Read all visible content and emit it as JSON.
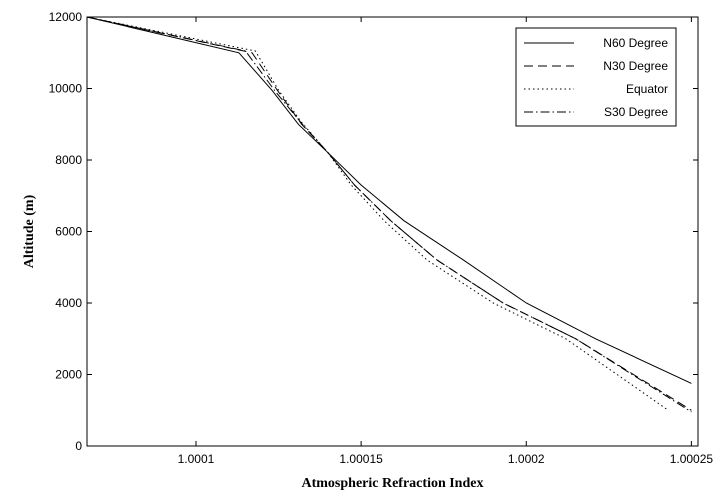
{
  "chart_data": {
    "type": "line",
    "title": "",
    "xlabel": "Atmospheric Refraction Index",
    "ylabel": "Altitude (m)",
    "xlim": [
      1.000067,
      1.000252
    ],
    "ylim": [
      0,
      12000
    ],
    "xticks": [
      1.0001,
      1.00015,
      1.0002,
      1.00025
    ],
    "xtick_labels": [
      "1.0001",
      "1.00015",
      "1.0002",
      "1.00025"
    ],
    "yticks": [
      0,
      2000,
      4000,
      6000,
      8000,
      10000,
      12000
    ],
    "ytick_labels": [
      "0",
      "2000",
      "4000",
      "6000",
      "8000",
      "10000",
      "12000"
    ],
    "grid": false,
    "legend_position": "top-right",
    "series": [
      {
        "name": "N60 Degree",
        "style": "solid",
        "color": "#000000",
        "x": [
          1.000067,
          1.000113,
          1.000123,
          1.000131,
          1.00014,
          1.00015,
          1.000163,
          1.000181,
          1.0002,
          1.000221,
          1.00025
        ],
        "y": [
          12000,
          11000,
          9950,
          9000,
          8200,
          7300,
          6300,
          5200,
          4000,
          3000,
          1750
        ]
      },
      {
        "name": "N30 Degree",
        "style": "dashed",
        "color": "#000000",
        "x": [
          1.000067,
          1.000117,
          1.000125,
          1.000132,
          1.00014,
          1.000148,
          1.000159,
          1.000173,
          1.000193,
          1.000215,
          1.00025
        ],
        "y": [
          12000,
          11000,
          9900,
          9000,
          8200,
          7300,
          6300,
          5200,
          4000,
          3000,
          1000
        ]
      },
      {
        "name": "Equator",
        "style": "dotted",
        "color": "#000000",
        "x": [
          1.000067,
          1.000118,
          1.000125,
          1.000132,
          1.00014,
          1.000147,
          1.000157,
          1.00017,
          1.00019,
          1.000212,
          1.000243
        ],
        "y": [
          12000,
          11050,
          9950,
          9050,
          8200,
          7300,
          6300,
          5200,
          4000,
          3000,
          1000
        ]
      },
      {
        "name": "S30 Degree",
        "style": "dashdot",
        "color": "#000000",
        "x": [
          1.000067,
          1.000115,
          1.000124,
          1.000132,
          1.00014,
          1.000148,
          1.000159,
          1.000173,
          1.000193,
          1.000215,
          1.00025
        ],
        "y": [
          12000,
          11050,
          9920,
          9020,
          8200,
          7300,
          6300,
          5200,
          4000,
          3000,
          950
        ]
      }
    ]
  }
}
